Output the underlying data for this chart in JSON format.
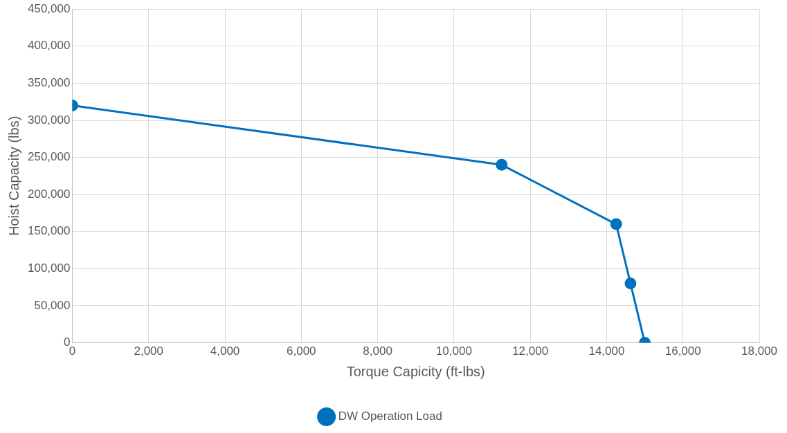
{
  "chart_data": {
    "type": "line",
    "xlabel": "Torque Capicity (ft-lbs)",
    "ylabel": "Hoist Capacity (lbs)",
    "series": [
      {
        "name": "DW Operation Load",
        "color": "#0070c0",
        "x": [
          0,
          11250,
          14250,
          14625,
          15000
        ],
        "values": [
          320000,
          240000,
          160000,
          80000,
          0
        ]
      }
    ],
    "xlim": [
      0,
      18000
    ],
    "xticks": [
      0,
      {
        "value": 2000,
        "label": "2,000"
      },
      {
        "value": 4000,
        "label": "4,000"
      },
      {
        "value": 6000,
        "label": "6,000"
      },
      {
        "value": 8000,
        "label": "8,000"
      },
      {
        "value": 10000,
        "label": "10,000"
      },
      {
        "value": 12000,
        "label": "12,000"
      },
      {
        "value": 14000,
        "label": "14,000"
      },
      {
        "value": 16000,
        "label": "16,000"
      },
      {
        "value": 18000,
        "label": "18,000"
      }
    ],
    "ylim": [
      0,
      450000
    ],
    "yticks": [
      0,
      {
        "value": 50000,
        "label": "50,000"
      },
      {
        "value": 100000,
        "label": "100,000"
      },
      {
        "value": 150000,
        "label": "150,000"
      },
      {
        "value": 200000,
        "label": "200,000"
      },
      {
        "value": 250000,
        "label": "250,000"
      },
      {
        "value": 300000,
        "label": "300,000"
      },
      {
        "value": 350000,
        "label": "350,000"
      },
      {
        "value": 400000,
        "label": "400,000"
      },
      {
        "value": 450000,
        "label": "450,000"
      }
    ],
    "grid": true,
    "legend": "bottom",
    "marker": "circle",
    "line_style": "solid"
  }
}
